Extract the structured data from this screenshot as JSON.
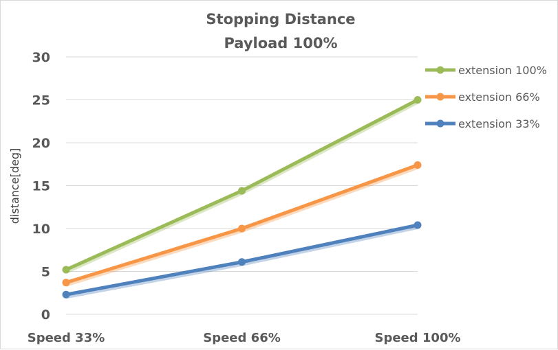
{
  "chart_data": {
    "type": "line",
    "title": [
      "Stopping Distance",
      "Payload 100%"
    ],
    "xlabel": "",
    "ylabel": "distance[deg]",
    "categories": [
      "Speed 33%",
      "Speed 66%",
      "Speed 100%"
    ],
    "ylim": [
      0,
      30
    ],
    "yticks": [
      0,
      5,
      10,
      15,
      20,
      25,
      30
    ],
    "grid": true,
    "legend_position": "right",
    "series": [
      {
        "name": "extension 100%",
        "color": "#9bbb59",
        "values": [
          5.2,
          14.4,
          25.0
        ]
      },
      {
        "name": "extension 66%",
        "color": "#f79646",
        "values": [
          3.7,
          10.0,
          17.4
        ]
      },
      {
        "name": "extension 33%",
        "color": "#4f81bd",
        "values": [
          2.3,
          6.1,
          10.4
        ]
      }
    ]
  }
}
